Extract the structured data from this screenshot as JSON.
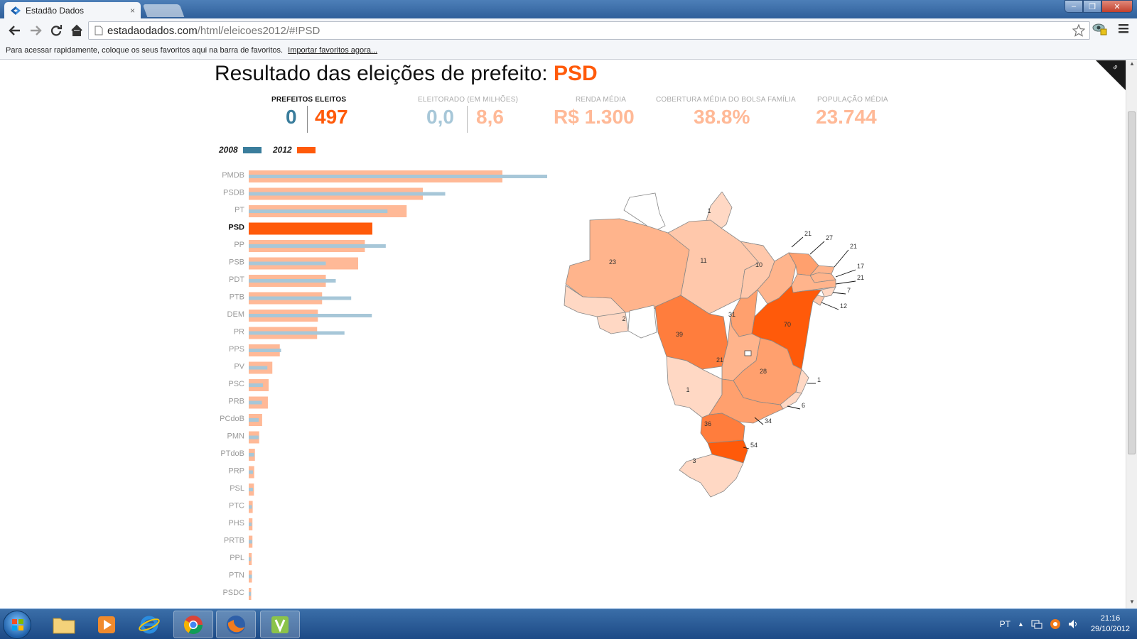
{
  "browser": {
    "tab_title": "Estadão Dados",
    "tab_close": "×",
    "url_domain": "estadaodados.com",
    "url_path": "/html/eleicoes2012/#!PSD",
    "bookmarks_text": "Para acessar rapidamente, coloque os seus favoritos aqui na barra de favoritos.",
    "bookmarks_link": "Importar favoritos agora...",
    "window_buttons": [
      "–",
      "❐",
      "✕"
    ]
  },
  "page": {
    "headline": "Resultado das eleições de prefeito: ",
    "headline_party": "PSD",
    "stats": {
      "prefeitos_label": "PREFEITOS ELEITOS",
      "prefeitos_2008": "0",
      "prefeitos_2012": "497",
      "eleitorado_label": "ELEITORADO (EM MILHÕES)",
      "eleitorado_2008": "0,0",
      "eleitorado_2012": "8,6",
      "renda_label": "RENDA MÉDIA",
      "renda_value": "R$ 1.300",
      "bolsa_label": "COBERTURA MÉDIA DO BOLSA FAMÍLIA",
      "bolsa_value": "38.8%",
      "populacao_label": "POPULAÇÃO MÉDIA",
      "populacao_value": "23.744"
    },
    "colors": {
      "accent": "#ff5a0a",
      "dark_blue": "#3a7d9c",
      "light_blue": "#a7c7d8",
      "light_orange": "#ffb997",
      "pale_orange": "#ffc3a8"
    }
  },
  "chart_data": {
    "type": "bar",
    "legend": [
      "2008",
      "2012"
    ],
    "highlight": "PSD",
    "categories": [
      "PMDB",
      "PSDB",
      "PT",
      "PSD",
      "PP",
      "PSB",
      "PDT",
      "PTB",
      "DEM",
      "PR",
      "PPS",
      "PV",
      "PSC",
      "PRB",
      "PCdoB",
      "PMN",
      "PTdoB",
      "PRP",
      "PSL",
      "PTC",
      "PHS",
      "PRTB",
      "PPL",
      "PTN",
      "PSDC"
    ],
    "series": [
      {
        "name": "2012",
        "values": [
          1020,
          700,
          635,
          497,
          467,
          440,
          310,
          295,
          278,
          275,
          125,
          95,
          80,
          77,
          54,
          42,
          25,
          22,
          21,
          16,
          15,
          15,
          12,
          13,
          10
        ]
      },
      {
        "name": "2008",
        "values": [
          1200,
          790,
          558,
          0,
          551,
          310,
          350,
          412,
          495,
          385,
          130,
          75,
          57,
          53,
          40,
          40,
          22,
          17,
          17,
          13,
          12,
          14,
          8,
          13,
          9
        ]
      }
    ]
  },
  "map_data": {
    "states": [
      {
        "id": "AC",
        "value": "2"
      },
      {
        "id": "AM",
        "value": "23"
      },
      {
        "id": "RR",
        "value": ""
      },
      {
        "id": "AP",
        "value": "1"
      },
      {
        "id": "PA",
        "value": "11"
      },
      {
        "id": "MA",
        "value": "10"
      },
      {
        "id": "PI",
        "value": "21"
      },
      {
        "id": "CE",
        "value": "27"
      },
      {
        "id": "RN",
        "value": "21"
      },
      {
        "id": "PB",
        "value": "17"
      },
      {
        "id": "PE",
        "value": "21"
      },
      {
        "id": "AL",
        "value": "7"
      },
      {
        "id": "SE",
        "value": "12"
      },
      {
        "id": "BA",
        "value": "70"
      },
      {
        "id": "TO",
        "value": "31"
      },
      {
        "id": "MT",
        "value": "39"
      },
      {
        "id": "GO",
        "value": "21"
      },
      {
        "id": "MG",
        "value": "28"
      },
      {
        "id": "ES",
        "value": "1"
      },
      {
        "id": "RJ",
        "value": "6"
      },
      {
        "id": "SP",
        "value": "34"
      },
      {
        "id": "MS",
        "value": "1"
      },
      {
        "id": "PR",
        "value": "36"
      },
      {
        "id": "SC",
        "value": "54"
      },
      {
        "id": "RS",
        "value": "3"
      },
      {
        "id": "RO",
        "value": ""
      }
    ]
  },
  "taskbar": {
    "language": "PT",
    "time": "21:16",
    "date": "29/10/2012"
  }
}
